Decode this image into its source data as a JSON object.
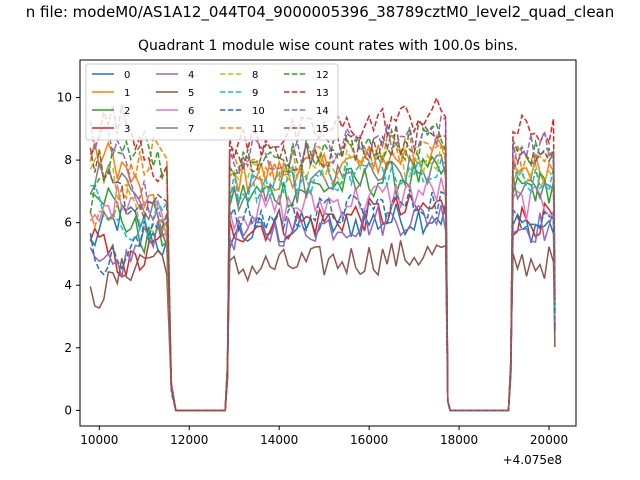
{
  "figure": {
    "suptitle": "n file: modeM0/AS1A12_044T04_9000005396_38789cztM0_level2_quad_clean"
  },
  "chart_data": {
    "type": "line",
    "title": "Quadrant 1 module wise count rates with 100.0s bins.",
    "xlabel": "",
    "ylabel": "",
    "x_offset_label": "+4.075e8",
    "xlim": [
      9570,
      20600
    ],
    "ylim": [
      -0.5,
      11.2
    ],
    "xticks": [
      10000,
      12000,
      14000,
      16000,
      18000,
      20000
    ],
    "yticks": [
      0,
      2,
      4,
      6,
      8,
      10
    ],
    "grid": false,
    "legend": {
      "placement": "upper-left",
      "columns": 4
    },
    "segments": [
      {
        "start": 9800,
        "end": 11500
      },
      {
        "start": 12900,
        "end": 17700
      },
      {
        "start": 19200,
        "end": 20100
      }
    ],
    "series": [
      {
        "name": "0",
        "color": "#1f77b4",
        "dash": "solid",
        "level": 5.6
      },
      {
        "name": "1",
        "color": "#ff7f0e",
        "dash": "solid",
        "level": 7.4
      },
      {
        "name": "2",
        "color": "#2ca02c",
        "dash": "solid",
        "level": 6.8
      },
      {
        "name": "3",
        "color": "#d62728",
        "dash": "solid",
        "level": 5.8
      },
      {
        "name": "4",
        "color": "#9467bd",
        "dash": "solid",
        "level": 5.6
      },
      {
        "name": "5",
        "color": "#8c564b",
        "dash": "solid",
        "level": 4.5
      },
      {
        "name": "6",
        "color": "#e377c2",
        "dash": "solid",
        "level": 6.3
      },
      {
        "name": "7",
        "color": "#7f7f7f",
        "dash": "solid",
        "level": 6.9
      },
      {
        "name": "8",
        "color": "#bcbd22",
        "dash": "dashed",
        "level": 7.3
      },
      {
        "name": "9",
        "color": "#17becf",
        "dash": "dashed",
        "level": 7.1
      },
      {
        "name": "10",
        "color": "#1f77b4",
        "dash": "dashed",
        "level": 6.0
      },
      {
        "name": "11",
        "color": "#ff7f0e",
        "dash": "dashed",
        "level": 7.6
      },
      {
        "name": "12",
        "color": "#2ca02c",
        "dash": "dashed",
        "level": 7.8
      },
      {
        "name": "13",
        "color": "#d62728",
        "dash": "dashed",
        "level": 8.5
      },
      {
        "name": "14",
        "color": "#9467bd",
        "dash": "dashed",
        "level": 8.0
      },
      {
        "name": "15",
        "color": "#8c564b",
        "dash": "dashed",
        "level": 7.9
      }
    ]
  }
}
